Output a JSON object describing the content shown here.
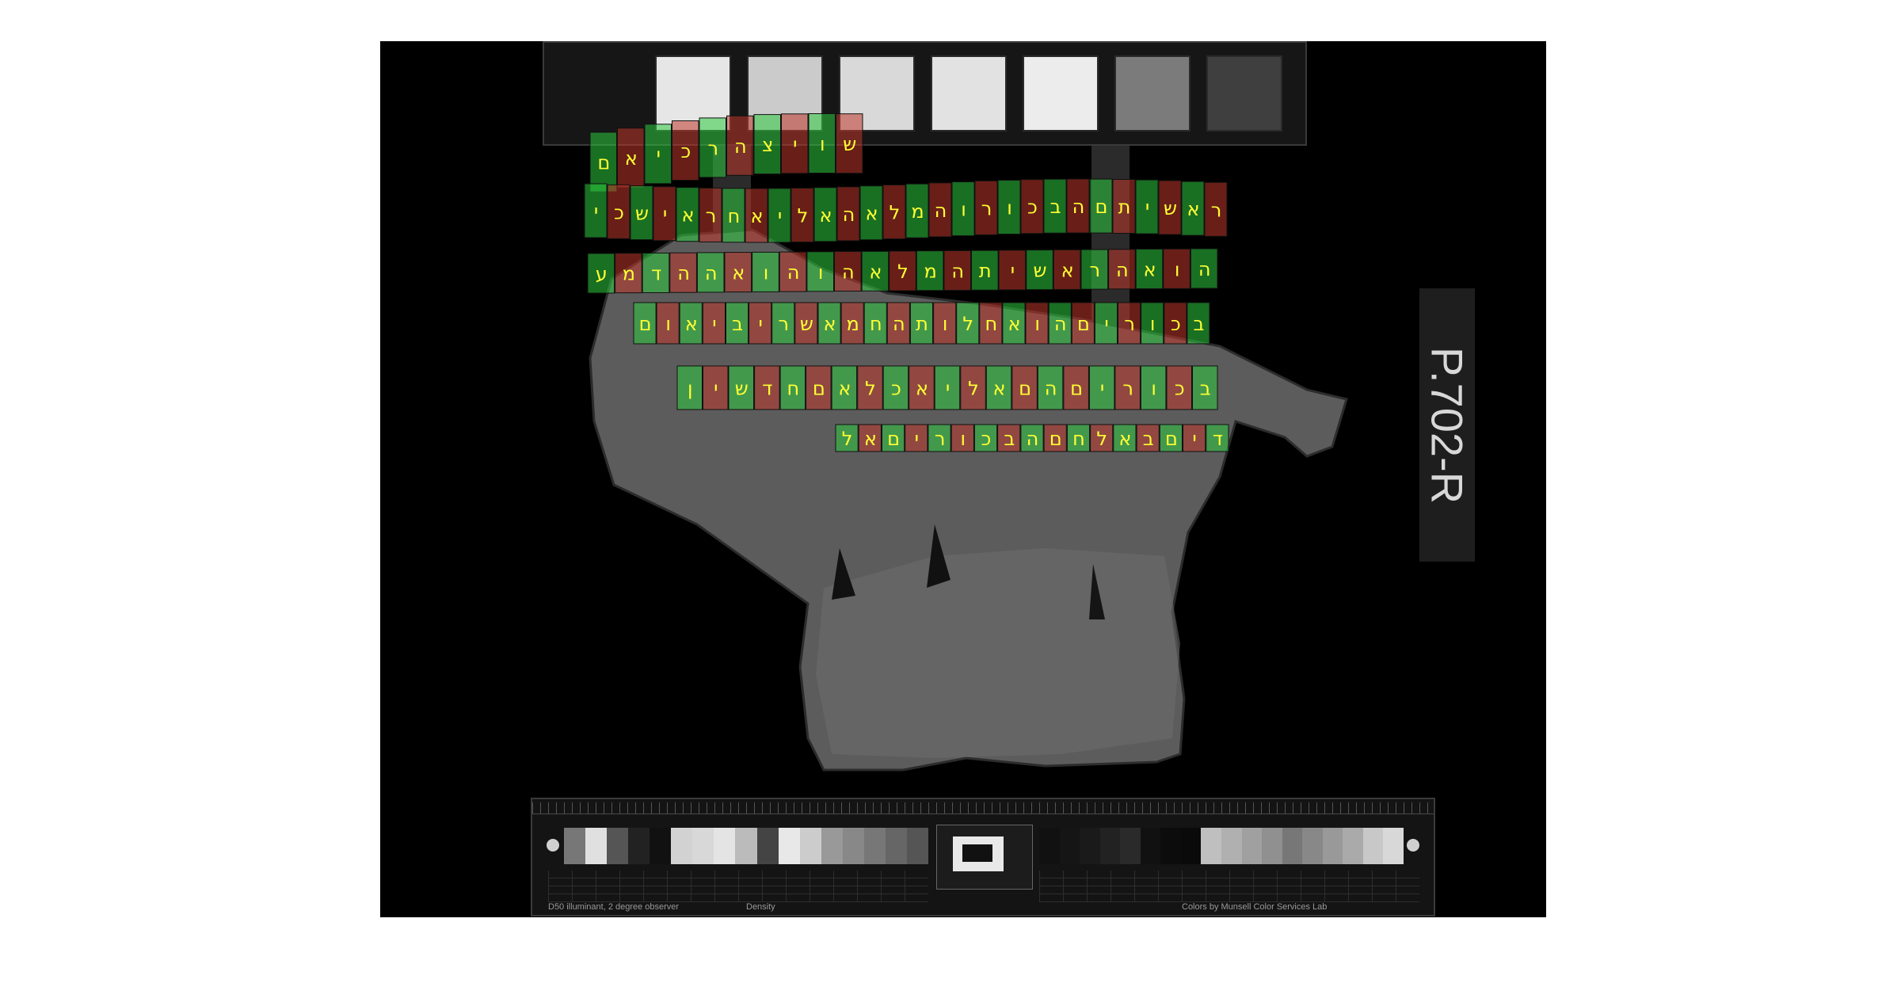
{
  "specimen_label": "P.702-R",
  "target_footer": {
    "left_note": "D50 illuminant, 2 degree observer",
    "density_label": "Density",
    "right_note": "Colors by Munsell Color Services Lab"
  },
  "colors": {
    "highlight_green": "#2ecc40",
    "highlight_red": "#c0392b",
    "glyph_label": "#ffff33",
    "background": "#000000"
  },
  "transcription_lines": [
    {
      "letters": [
        "ש",
        "ו",
        "י",
        "צ",
        "ה",
        "ר",
        "כ",
        "י",
        "א",
        "ם"
      ]
    },
    {
      "letters": [
        "ר",
        "א",
        "ש",
        "י",
        "ת",
        "ם",
        "ה",
        "ב",
        "כ",
        "ו",
        "ר",
        "ו",
        "ה",
        "מ",
        "ל",
        "א",
        "ה",
        "א",
        "ל",
        "י",
        "א",
        "ח",
        "ר",
        "א",
        "י",
        "ש",
        "כ",
        "י"
      ]
    },
    {
      "letters": [
        "ה",
        "ו",
        "א",
        "ה",
        "ר",
        "א",
        "ש",
        "י",
        "ת",
        "ה",
        "מ",
        "ל",
        "א",
        "ה",
        "ו",
        "ה",
        "ו",
        "א",
        "ה",
        "ה",
        "ד",
        "מ",
        "ע"
      ]
    },
    {
      "letters": [
        "ב",
        "כ",
        "ו",
        "ר",
        "י",
        "ם",
        "ה",
        "ו",
        "א",
        "ח",
        "ל",
        "ו",
        "ת",
        "ה",
        "ח",
        "מ",
        "א",
        "ש",
        "ר",
        "י",
        "ב",
        "י",
        "א",
        "ו",
        "ם"
      ]
    },
    {
      "letters": [
        "ב",
        "כ",
        "ו",
        "ר",
        "י",
        "ם",
        "ה",
        "ם",
        "א",
        "ל",
        "י",
        "א",
        "כ",
        "ל",
        "א",
        "ם",
        "ח",
        "ד",
        "ש",
        "י",
        "ן"
      ]
    },
    {
      "letters": [
        "ד",
        "י",
        "ם",
        "ב",
        "א",
        "ל",
        "ח",
        "ם",
        "ה",
        "ב",
        "כ",
        "ו",
        "ר",
        "י",
        "ם",
        "א",
        "ל"
      ]
    }
  ]
}
